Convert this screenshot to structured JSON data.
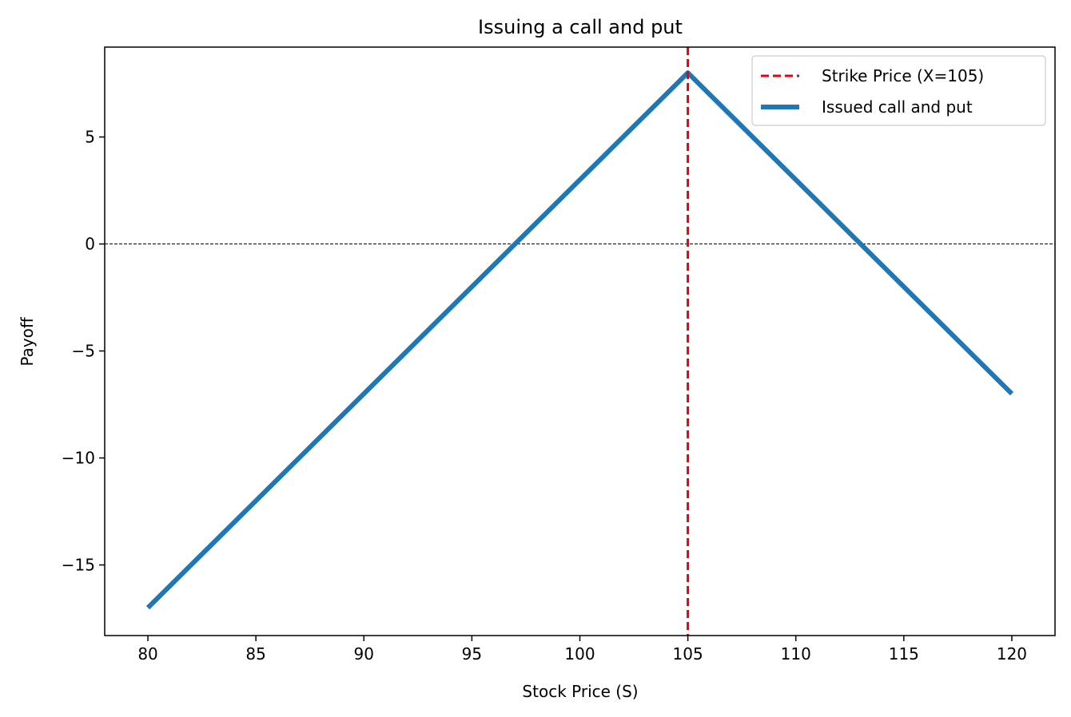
{
  "chart_data": {
    "type": "line",
    "title": "Issuing a call and put",
    "xlabel": "Stock Price (S)",
    "ylabel": "Payoff",
    "xlim": [
      78,
      122
    ],
    "ylim": [
      -18.3,
      9.2
    ],
    "xticks": [
      80,
      85,
      90,
      95,
      100,
      105,
      110,
      115,
      120
    ],
    "xtick_labels": [
      "80",
      "85",
      "90",
      "95",
      "100",
      "105",
      "110",
      "115",
      "120"
    ],
    "yticks": [
      -15,
      -10,
      -5,
      0,
      5
    ],
    "ytick_labels": [
      "−15",
      "−10",
      "−5",
      "0",
      "5"
    ],
    "grid": false,
    "legend_position": "top-right",
    "zero_line": {
      "y": 0,
      "color": "#000000",
      "style": "dashed"
    },
    "strike": {
      "name": "Strike Price (X=105)",
      "x": 105,
      "color": "#e8000b",
      "style": "dashed"
    },
    "series": [
      {
        "name": "Issued call and put",
        "color": "#1f77b4",
        "x": [
          80,
          104.6,
          105,
          120
        ],
        "y": [
          -17,
          7.6,
          8,
          -7
        ]
      }
    ]
  }
}
